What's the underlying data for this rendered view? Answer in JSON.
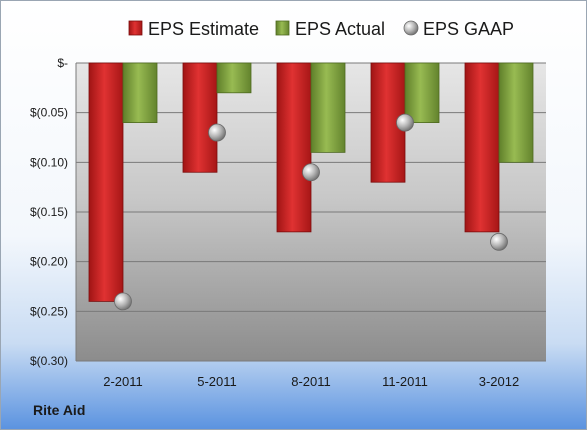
{
  "company": "Rite Aid",
  "chart_data": {
    "type": "bar",
    "categories": [
      "2-2011",
      "5-2011",
      "8-2011",
      "11-2011",
      "3-2012"
    ],
    "series": [
      {
        "name": "EPS Estimate",
        "kind": "bar",
        "color": "#cc1f1f",
        "values": [
          -0.24,
          -0.11,
          -0.17,
          -0.12,
          -0.17
        ]
      },
      {
        "name": "EPS Actual",
        "kind": "bar",
        "color": "#7ea23c",
        "values": [
          -0.06,
          -0.03,
          -0.09,
          -0.06,
          -0.1
        ]
      },
      {
        "name": "EPS GAAP",
        "kind": "marker",
        "color": "#b8b8b8",
        "values": [
          -0.24,
          -0.07,
          -0.11,
          -0.06,
          -0.18
        ]
      }
    ],
    "yticks": [
      0,
      -0.05,
      -0.1,
      -0.15,
      -0.2,
      -0.25,
      -0.3
    ],
    "ytick_labels": [
      "$-",
      "$(0.05)",
      "$(0.10)",
      "$(0.15)",
      "$(0.20)",
      "$(0.25)",
      "$(0.30)"
    ],
    "ylim": [
      -0.3,
      0
    ],
    "grid": true,
    "legend": "top"
  }
}
